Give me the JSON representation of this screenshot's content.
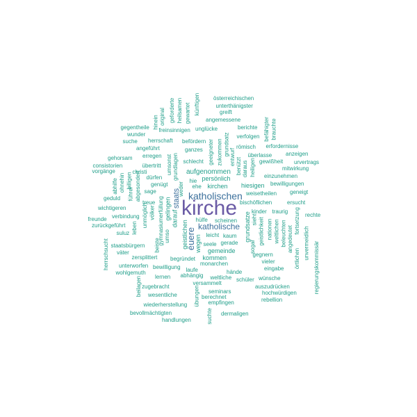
{
  "palette": {
    "large": "#6a5aa5",
    "medium": "#3b6f9b",
    "small": "#1f9e89"
  },
  "words": [
    {
      "text": "kirche",
      "weight": 5
    },
    {
      "text": "katholischen",
      "weight": 3
    },
    {
      "text": "katholische",
      "weight": 2.6
    },
    {
      "text": "euere",
      "weight": 2.4
    },
    {
      "text": "staats",
      "weight": 2
    },
    {
      "text": "aufgenommen",
      "weight": 1.8
    },
    {
      "text": "kirchen",
      "weight": 1.6
    },
    {
      "text": "hiesigen",
      "weight": 1.6
    },
    {
      "text": "gemeinde",
      "weight": 1.6
    },
    {
      "text": "persönlich",
      "weight": 1.6
    },
    {
      "text": "grundsatze",
      "weight": 1.5
    },
    {
      "text": "geistlichen",
      "weight": 1.5
    },
    {
      "text": "wegen",
      "weight": 1.5
    },
    {
      "text": "darauf",
      "weight": 1.4
    },
    {
      "text": "gelingen",
      "weight": 1.4
    },
    {
      "text": "kommen",
      "weight": 1.3
    },
    {
      "text": "österreichischen",
      "weight": 1
    },
    {
      "text": "unterthänigster",
      "weight": 1
    },
    {
      "text": "greift",
      "weight": 1
    },
    {
      "text": "angemessene",
      "weight": 1
    },
    {
      "text": "berichte",
      "weight": 1
    },
    {
      "text": "verfolgen",
      "weight": 1
    },
    {
      "text": "römisch",
      "weight": 1
    },
    {
      "text": "erfordernisse",
      "weight": 1
    },
    {
      "text": "überlasse",
      "weight": 1
    },
    {
      "text": "gewißheit",
      "weight": 1
    },
    {
      "text": "anzeigen",
      "weight": 1
    },
    {
      "text": "urvertrags",
      "weight": 1
    },
    {
      "text": "mitwirkung",
      "weight": 1
    },
    {
      "text": "einzunehmen",
      "weight": 1
    },
    {
      "text": "bewilligungen",
      "weight": 1
    },
    {
      "text": "weisetheilen",
      "weight": 1
    },
    {
      "text": "geneigt",
      "weight": 1
    },
    {
      "text": "bischöflichen",
      "weight": 1
    },
    {
      "text": "ersucht",
      "weight": 1
    },
    {
      "text": "kinder",
      "weight": 1
    },
    {
      "text": "traurig",
      "weight": 1
    },
    {
      "text": "rechte",
      "weight": 1
    },
    {
      "text": "gegentheile",
      "weight": 1
    },
    {
      "text": "freinsinnigen",
      "weight": 1
    },
    {
      "text": "unglücke",
      "weight": 1
    },
    {
      "text": "wunder",
      "weight": 1
    },
    {
      "text": "suche",
      "weight": 1
    },
    {
      "text": "herrschaft",
      "weight": 1
    },
    {
      "text": "befördern",
      "weight": 1
    },
    {
      "text": "angeführt",
      "weight": 1
    },
    {
      "text": "ganzes",
      "weight": 1
    },
    {
      "text": "gehorsam",
      "weight": 1
    },
    {
      "text": "erregen",
      "weight": 1
    },
    {
      "text": "schlecht",
      "weight": 1
    },
    {
      "text": "consistorien",
      "weight": 1
    },
    {
      "text": "übertritt",
      "weight": 1
    },
    {
      "text": "vorgänge",
      "weight": 1
    },
    {
      "text": "christi",
      "weight": 1
    },
    {
      "text": "dürfen",
      "weight": 1
    },
    {
      "text": "genügt",
      "weight": 1
    },
    {
      "text": "sage",
      "weight": 1
    },
    {
      "text": "ehe",
      "weight": 1
    },
    {
      "text": "hie",
      "weight": 1
    },
    {
      "text": "geduld",
      "weight": 1
    },
    {
      "text": "treue",
      "weight": 1
    },
    {
      "text": "wichtigeren",
      "weight": 1
    },
    {
      "text": "hülfe",
      "weight": 1
    },
    {
      "text": "scheinen",
      "weight": 1
    },
    {
      "text": "verbindung",
      "weight": 1
    },
    {
      "text": "freunde",
      "weight": 1
    },
    {
      "text": "zurückgeführt",
      "weight": 1
    },
    {
      "text": "leicht",
      "weight": 1
    },
    {
      "text": "kaum",
      "weight": 1
    },
    {
      "text": "seele",
      "weight": 1
    },
    {
      "text": "gerade",
      "weight": 1
    },
    {
      "text": "staatsbürgern",
      "weight": 1
    },
    {
      "text": "väter",
      "weight": 1
    },
    {
      "text": "suluz",
      "weight": 1
    },
    {
      "text": "zersplittert",
      "weight": 1
    },
    {
      "text": "begründet",
      "weight": 1
    },
    {
      "text": "monarchen",
      "weight": 1
    },
    {
      "text": "gegnern",
      "weight": 1
    },
    {
      "text": "vieler",
      "weight": 1
    },
    {
      "text": "eingabe",
      "weight": 1
    },
    {
      "text": "unterworfen",
      "weight": 1
    },
    {
      "text": "bewilligung",
      "weight": 1
    },
    {
      "text": "laufe",
      "weight": 1
    },
    {
      "text": "wohlgemuth",
      "weight": 1
    },
    {
      "text": "lernen",
      "weight": 1
    },
    {
      "text": "abhängig",
      "weight": 1
    },
    {
      "text": "hände",
      "weight": 1
    },
    {
      "text": "weltliche",
      "weight": 1
    },
    {
      "text": "schüler",
      "weight": 1
    },
    {
      "text": "wünsche",
      "weight": 1
    },
    {
      "text": "zugebracht",
      "weight": 1
    },
    {
      "text": "versammelt",
      "weight": 1
    },
    {
      "text": "auszudrücken",
      "weight": 1
    },
    {
      "text": "wesentliche",
      "weight": 1
    },
    {
      "text": "seminars",
      "weight": 1
    },
    {
      "text": "hochwürdigen",
      "weight": 1
    },
    {
      "text": "berechnet",
      "weight": 1
    },
    {
      "text": "rebellion",
      "weight": 1
    },
    {
      "text": "wiederherstellung",
      "weight": 1
    },
    {
      "text": "empfingen",
      "weight": 1
    },
    {
      "text": "bevollmächtigten",
      "weight": 1
    },
    {
      "text": "dermaligen",
      "weight": 1
    },
    {
      "text": "handlungen",
      "weight": 1
    },
    {
      "text": "künftigen",
      "weight": 1
    },
    {
      "text": "gewartet",
      "weight": 1
    },
    {
      "text": "heilsamen",
      "weight": 1
    },
    {
      "text": "geforderte",
      "weight": 1
    },
    {
      "text": "original",
      "weight": 1
    },
    {
      "text": "hinein",
      "weight": 1
    },
    {
      "text": "befähigter",
      "weight": 1
    },
    {
      "text": "brauchte",
      "weight": 1
    },
    {
      "text": "geeigneter",
      "weight": 1
    },
    {
      "text": "zukommen",
      "weight": 1
    },
    {
      "text": "grundsatz",
      "weight": 1
    },
    {
      "text": "entwurf",
      "weight": 1
    },
    {
      "text": "benützt",
      "weight": 1
    },
    {
      "text": "daraus",
      "weight": 1
    },
    {
      "text": "heiligen",
      "weight": 1
    },
    {
      "text": "umsonst",
      "weight": 1
    },
    {
      "text": "grundlagen",
      "weight": 1
    },
    {
      "text": "weder",
      "weight": 1
    },
    {
      "text": "abhilfe",
      "weight": 1
    },
    {
      "text": "ohnehin",
      "weight": 1
    },
    {
      "text": "billigen",
      "weight": 1
    },
    {
      "text": "abgesondert",
      "weight": 1
    },
    {
      "text": "führer",
      "weight": 1
    },
    {
      "text": "unmöglich",
      "weight": 1
    },
    {
      "text": "völker",
      "weight": 1
    },
    {
      "text": "gymnasiumerfüllung",
      "weight": 1
    },
    {
      "text": "umso",
      "weight": 1
    },
    {
      "text": "leben",
      "weight": 1
    },
    {
      "text": "beiste",
      "weight": 1
    },
    {
      "text": "herrschsucht",
      "weight": 1
    },
    {
      "text": "beilagen",
      "weight": 1
    },
    {
      "text": "übungen",
      "weight": 1
    },
    {
      "text": "suchte",
      "weight": 1
    },
    {
      "text": "sogar",
      "weight": 1
    },
    {
      "text": "geistlichkeit",
      "weight": 1
    },
    {
      "text": "sieht",
      "weight": 1
    },
    {
      "text": "nationen",
      "weight": 1
    },
    {
      "text": "weltlichen",
      "weight": 1
    },
    {
      "text": "beleuchten",
      "weight": 1
    },
    {
      "text": "angedeutet",
      "weight": 1
    },
    {
      "text": "örtlichen",
      "weight": 1
    },
    {
      "text": "fortsetzung",
      "weight": 1
    },
    {
      "text": "unvermeidlich",
      "weight": 1
    },
    {
      "text": "regierungskommissär",
      "weight": 1
    }
  ]
}
